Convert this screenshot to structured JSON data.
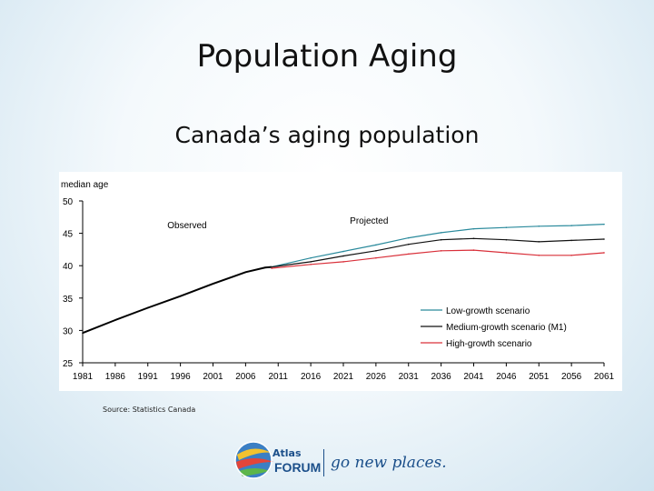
{
  "slide": {
    "title": "Population Aging",
    "subtitle": "Canada’s aging population",
    "source": "Source: Statistics Canada"
  },
  "footer": {
    "brand_top": "Atlas",
    "brand_bottom": "FORUM",
    "tagline": "go new places."
  },
  "chart_data": {
    "type": "line",
    "title": "",
    "ylabel": "median age",
    "xlabel": "",
    "xlim": [
      1981,
      2061
    ],
    "ylim": [
      25,
      50
    ],
    "yticks": [
      25,
      30,
      35,
      40,
      45,
      50
    ],
    "xticks": [
      1981,
      1986,
      1991,
      1996,
      2001,
      2006,
      2011,
      2016,
      2021,
      2026,
      2031,
      2036,
      2041,
      2046,
      2051,
      2056,
      2061
    ],
    "annotations": [
      "Observed",
      "Projected"
    ],
    "colors": {
      "observed": "#000000",
      "low": "#2a8a9c",
      "medium": "#111111",
      "high": "#d9303a",
      "axis": "#000000"
    },
    "series": [
      {
        "name": "Observed",
        "legend": false,
        "x": [
          1981,
          1986,
          1991,
          1996,
          2001,
          2006,
          2009,
          2010
        ],
        "y": [
          29.6,
          31.6,
          33.5,
          35.3,
          37.2,
          39.0,
          39.7,
          39.8
        ]
      },
      {
        "name": "Low-growth scenario",
        "x": [
          2010,
          2016,
          2021,
          2026,
          2031,
          2036,
          2041,
          2046,
          2051,
          2056,
          2061
        ],
        "y": [
          39.8,
          41.2,
          42.2,
          43.2,
          44.3,
          45.1,
          45.7,
          45.9,
          46.1,
          46.2,
          46.4
        ]
      },
      {
        "name": "Medium-growth scenario (M1)",
        "x": [
          2010,
          2016,
          2021,
          2026,
          2031,
          2036,
          2041,
          2046,
          2051,
          2056,
          2061
        ],
        "y": [
          39.8,
          40.6,
          41.5,
          42.3,
          43.3,
          44.0,
          44.2,
          44.0,
          43.7,
          43.9,
          44.1
        ]
      },
      {
        "name": "High-growth scenario",
        "x": [
          2010,
          2016,
          2021,
          2026,
          2031,
          2036,
          2041,
          2046,
          2051,
          2056,
          2061
        ],
        "y": [
          39.6,
          40.2,
          40.6,
          41.2,
          41.8,
          42.3,
          42.4,
          42.0,
          41.6,
          41.6,
          42.0
        ]
      }
    ]
  }
}
